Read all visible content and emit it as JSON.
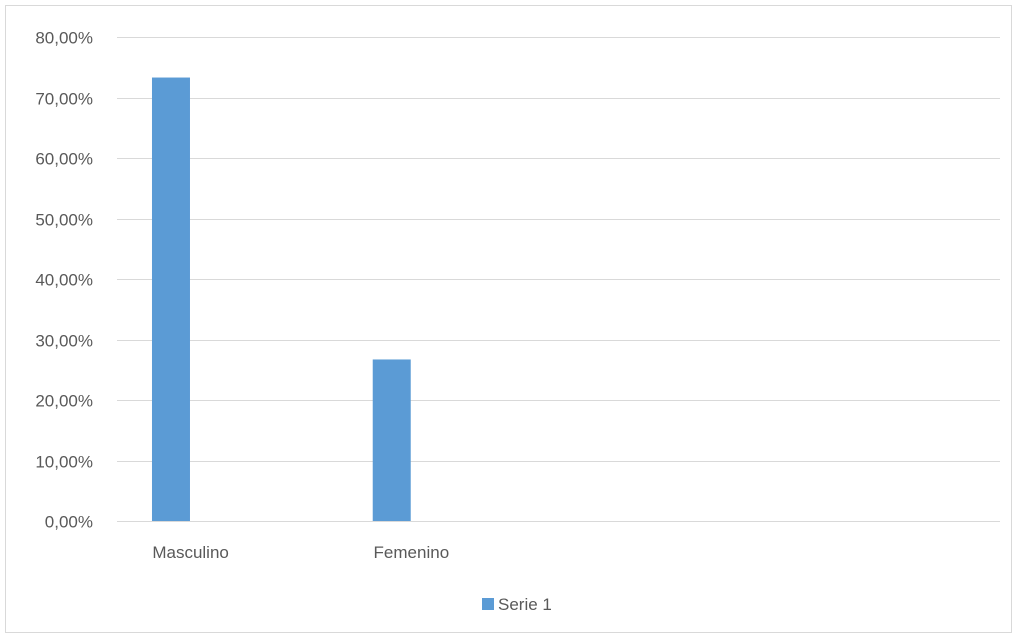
{
  "chart_data": {
    "type": "bar",
    "categories": [
      "Masculino",
      "Femenino",
      "",
      ""
    ],
    "series": [
      {
        "name": "Serie 1",
        "values": [
          0.733,
          0.267,
          null,
          null
        ],
        "color": "#5b9bd5"
      }
    ],
    "y_ticks": [
      "0,00%",
      "10,00%",
      "20,00%",
      "30,00%",
      "40,00%",
      "50,00%",
      "60,00%",
      "70,00%",
      "80,00%"
    ],
    "ylim": [
      0,
      0.8
    ],
    "grid": true,
    "legend": "bottom",
    "title": "",
    "xlabel": "",
    "ylabel": ""
  }
}
